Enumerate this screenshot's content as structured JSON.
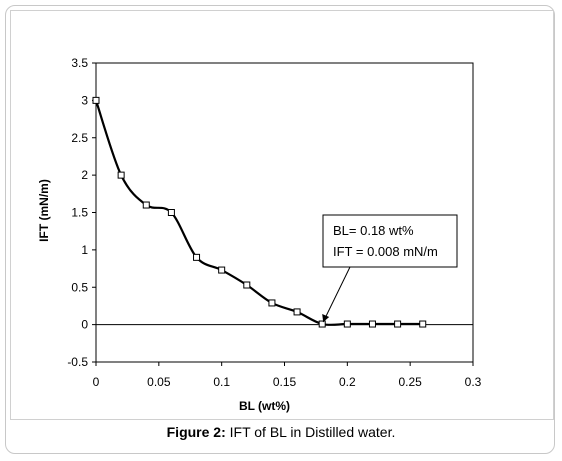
{
  "caption": {
    "label": "Figure 2:",
    "text": "IFT of BL in Distilled water."
  },
  "chart_data": {
    "type": "scatter",
    "title": "",
    "xlabel": "BL (wt%)",
    "ylabel": "IFT (mN/m)",
    "xlim": [
      0,
      0.3
    ],
    "ylim": [
      -0.5,
      3.5
    ],
    "x_ticks": [
      "0",
      "0.05",
      "0.1",
      "0.15",
      "0.2",
      "0.25",
      "0.3"
    ],
    "y_ticks": [
      "3.5",
      "3",
      "2.5",
      "2",
      "1.5",
      "1",
      "0.5",
      "0",
      "-0.5"
    ],
    "grid": false,
    "legend": "none",
    "line_style": "smoothed line with square markers",
    "series": [
      {
        "x": [
          0,
          0.02,
          0.04,
          0.06,
          0.08,
          0.1,
          0.12,
          0.14,
          0.16,
          0.18,
          0.2,
          0.22,
          0.24,
          0.26
        ],
        "y": [
          3.0,
          2.0,
          1.6,
          1.5,
          0.9,
          0.73,
          0.53,
          0.29,
          0.17,
          0.008,
          0.008,
          0.008,
          0.008,
          0.008
        ]
      }
    ],
    "annotation": {
      "lines": [
        "BL= 0.18 wt%",
        "IFT = 0.008 mN/m"
      ],
      "points_to": [
        0.18,
        0.008
      ]
    }
  }
}
